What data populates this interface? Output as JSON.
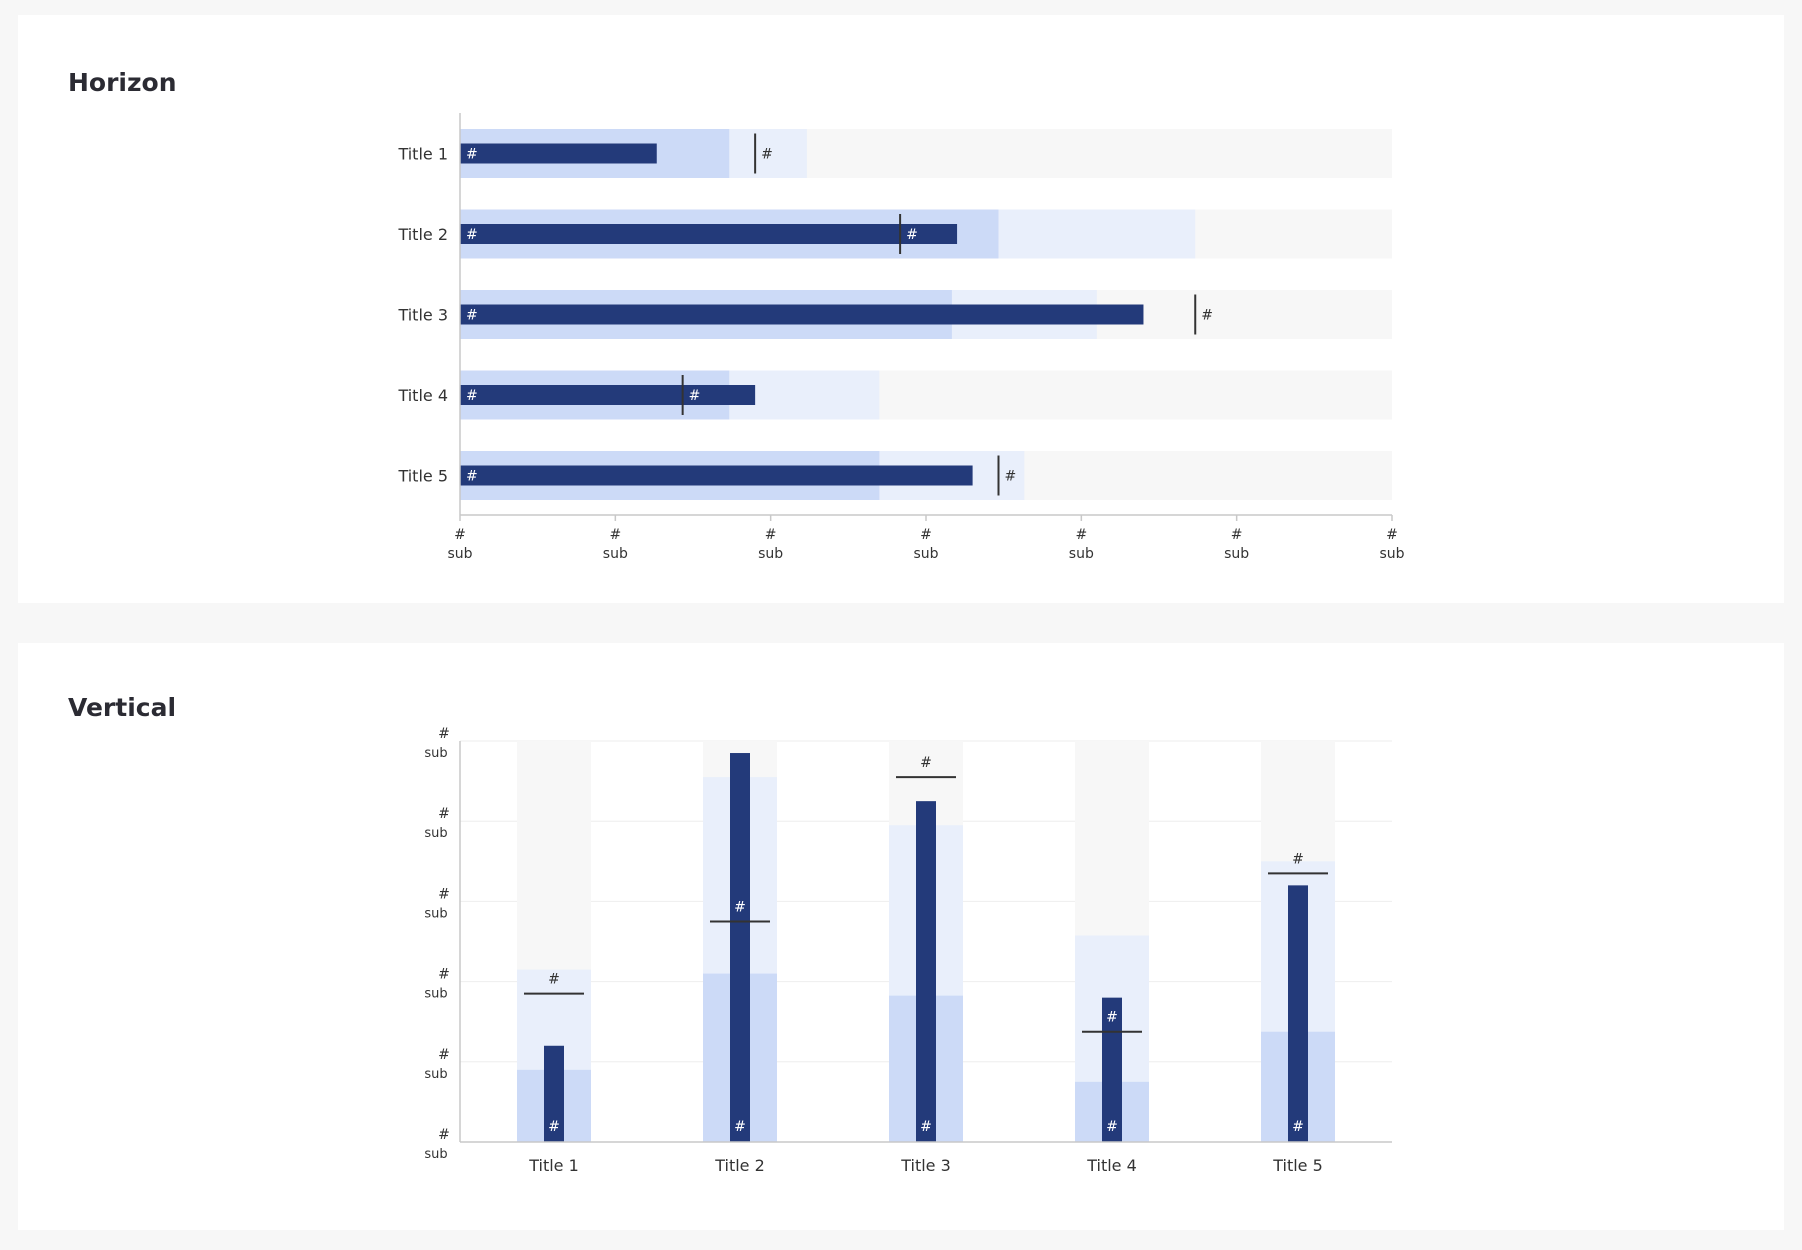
{
  "sections": {
    "horizontal_title": "Horizon",
    "vertical_title": "Vertical"
  },
  "colors": {
    "bar": "#233a7a",
    "range_primary": "#ccdaf7",
    "range_secondary": "#e9effb",
    "range_background": "#f7f7f7",
    "marker": "#333333",
    "axis": "#c8c8c8",
    "gridline": "#eeeeee"
  },
  "chart_data": [
    {
      "type": "bar",
      "subtype": "bullet",
      "orientation": "horizontal",
      "title": "Horizon",
      "categories": [
        "Title 1",
        "Title 2",
        "Title 3",
        "Title 4",
        "Title 5"
      ],
      "values": [
        19,
        48,
        66,
        28.5,
        49.5
      ],
      "markers": [
        28.5,
        42.5,
        71,
        21.5,
        52
      ],
      "ranges": [
        [
          26,
          33.5,
          90
        ],
        [
          52,
          71,
          90
        ],
        [
          47.5,
          61.5,
          90
        ],
        [
          26,
          40.5,
          90
        ],
        [
          40.5,
          54.5,
          90
        ]
      ],
      "value_label": "#",
      "marker_label": "#",
      "xlim": [
        0,
        90
      ],
      "ticks": [
        0,
        15,
        30,
        45,
        60,
        75,
        90
      ],
      "tick_label": "#",
      "tick_sublabel": "sub",
      "grid": false
    },
    {
      "type": "bar",
      "subtype": "bullet",
      "orientation": "vertical",
      "title": "Vertical",
      "categories": [
        "Title 1",
        "Title 2",
        "Title 3",
        "Title 4",
        "Title 5"
      ],
      "values": [
        24,
        97,
        85,
        36,
        64
      ],
      "markers": [
        37,
        55,
        91,
        27.5,
        67
      ],
      "ranges": [
        [
          18,
          43,
          100
        ],
        [
          42,
          91,
          100
        ],
        [
          36.5,
          79,
          100
        ],
        [
          15,
          51.5,
          100
        ],
        [
          27.5,
          70,
          100
        ]
      ],
      "value_label": "#",
      "marker_label": "#",
      "ylim": [
        0,
        100
      ],
      "ticks": [
        0,
        20,
        40,
        60,
        80,
        100
      ],
      "tick_label": "#",
      "tick_sublabel": "sub",
      "grid": true
    }
  ]
}
